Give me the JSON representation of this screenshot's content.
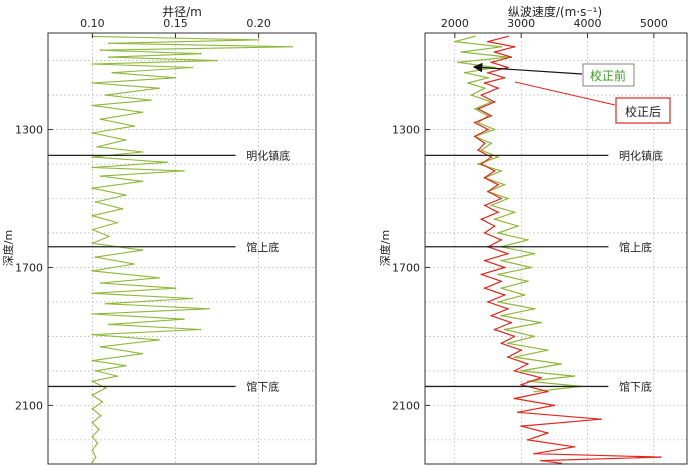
{
  "chart_data": [
    {
      "type": "line",
      "title": "井径/m",
      "xlabel": "井径/m",
      "ylabel": "深度/m",
      "xlim": [
        0.0733,
        0.2345
      ],
      "ylim": [
        2270,
        1020
      ],
      "x_ticks": [
        "0.10",
        "0.15",
        "0.20"
      ],
      "x_tick_values": [
        0.1,
        0.15,
        0.2
      ],
      "y_ticks": [
        "1300",
        "1700",
        "2100"
      ],
      "y_tick_values": [
        1300,
        1700,
        2100
      ],
      "grid": true,
      "colors": {
        "series": "#8db83a",
        "frame": "#333333",
        "grid": "#9a9a9a"
      },
      "series": [
        {
          "points": [
            [
              0.1,
              1030
            ],
            [
              0.2,
              1040
            ],
            [
              0.11,
              1050
            ],
            [
              0.22,
              1060
            ],
            [
              0.105,
              1070
            ],
            [
              0.165,
              1080
            ],
            [
              0.11,
              1090
            ],
            [
              0.175,
              1100
            ],
            [
              0.1,
              1110
            ],
            [
              0.16,
              1120
            ],
            [
              0.112,
              1135
            ],
            [
              0.15,
              1150
            ],
            [
              0.1,
              1165
            ],
            [
              0.14,
              1180
            ],
            [
              0.108,
              1200
            ],
            [
              0.135,
              1215
            ],
            [
              0.1,
              1230
            ],
            [
              0.13,
              1250
            ],
            [
              0.105,
              1270
            ],
            [
              0.125,
              1290
            ],
            [
              0.1,
              1310
            ],
            [
              0.12,
              1330
            ],
            [
              0.103,
              1350
            ],
            [
              0.13,
              1365
            ],
            [
              0.1,
              1380
            ],
            [
              0.145,
              1395
            ],
            [
              0.1,
              1410
            ],
            [
              0.155,
              1420
            ],
            [
              0.105,
              1435
            ],
            [
              0.13,
              1450
            ],
            [
              0.1,
              1470
            ],
            [
              0.12,
              1490
            ],
            [
              0.102,
              1510
            ],
            [
              0.118,
              1530
            ],
            [
              0.1,
              1550
            ],
            [
              0.115,
              1570
            ],
            [
              0.1,
              1590
            ],
            [
              0.11,
              1610
            ],
            [
              0.1,
              1630
            ],
            [
              0.13,
              1650
            ],
            [
              0.102,
              1670
            ],
            [
              0.125,
              1690
            ],
            [
              0.1,
              1710
            ],
            [
              0.14,
              1730
            ],
            [
              0.105,
              1745
            ],
            [
              0.15,
              1760
            ],
            [
              0.1,
              1775
            ],
            [
              0.16,
              1790
            ],
            [
              0.108,
              1805
            ],
            [
              0.17,
              1820
            ],
            [
              0.1,
              1835
            ],
            [
              0.155,
              1850
            ],
            [
              0.11,
              1865
            ],
            [
              0.165,
              1880
            ],
            [
              0.1,
              1895
            ],
            [
              0.14,
              1910
            ],
            [
              0.105,
              1930
            ],
            [
              0.13,
              1950
            ],
            [
              0.1,
              1970
            ],
            [
              0.12,
              1985
            ],
            [
              0.102,
              2000
            ],
            [
              0.115,
              2015
            ],
            [
              0.1,
              2030
            ],
            [
              0.108,
              2050
            ],
            [
              0.1,
              2070
            ],
            [
              0.106,
              2090
            ],
            [
              0.1,
              2110
            ],
            [
              0.105,
              2130
            ],
            [
              0.1,
              2150
            ],
            [
              0.104,
              2170
            ],
            [
              0.1,
              2190
            ],
            [
              0.103,
              2210
            ],
            [
              0.1,
              2230
            ],
            [
              0.102,
              2250
            ],
            [
              0.1,
              2265
            ]
          ]
        }
      ],
      "annotations": [
        {
          "text": "明化镇底",
          "depth": 1375
        },
        {
          "text": "馆上底",
          "depth": 1640
        },
        {
          "text": "馆下底",
          "depth": 2045
        }
      ]
    },
    {
      "type": "line",
      "title": "纵波速度/(m·s⁻¹)",
      "xlabel": "纵波速度/(m·s⁻¹)",
      "ylabel": "深度/m",
      "xlim": [
        1550,
        5500
      ],
      "ylim": [
        2270,
        1020
      ],
      "x_ticks": [
        "2000",
        "3000",
        "4000",
        "5000"
      ],
      "x_tick_values": [
        2000,
        3000,
        4000,
        5000
      ],
      "y_ticks": [
        "1300",
        "1700",
        "2100"
      ],
      "y_tick_values": [
        1300,
        1700,
        2100
      ],
      "grid": true,
      "colors": {
        "before": "#8db83a",
        "after": "#e0271e",
        "frame": "#333333",
        "grid": "#9a9a9a"
      },
      "series": [
        {
          "name": "校正前",
          "points": [
            [
              2300,
              1030
            ],
            [
              2000,
              1045
            ],
            [
              2700,
              1060
            ],
            [
              2100,
              1075
            ],
            [
              2800,
              1090
            ],
            [
              2050,
              1105
            ],
            [
              2600,
              1120
            ],
            [
              2150,
              1135
            ],
            [
              2500,
              1150
            ],
            [
              2200,
              1165
            ],
            [
              2450,
              1180
            ],
            [
              2250,
              1200
            ],
            [
              2550,
              1220
            ],
            [
              2300,
              1240
            ],
            [
              2500,
              1260
            ],
            [
              2350,
              1280
            ],
            [
              2600,
              1300
            ],
            [
              2300,
              1320
            ],
            [
              2550,
              1340
            ],
            [
              2400,
              1360
            ],
            [
              2650,
              1380
            ],
            [
              2350,
              1400
            ],
            [
              2700,
              1420
            ],
            [
              2450,
              1440
            ],
            [
              2750,
              1460
            ],
            [
              2500,
              1480
            ],
            [
              2800,
              1500
            ],
            [
              2550,
              1520
            ],
            [
              2900,
              1540
            ],
            [
              2600,
              1560
            ],
            [
              2950,
              1580
            ],
            [
              2650,
              1600
            ],
            [
              3100,
              1620
            ],
            [
              2700,
              1640
            ],
            [
              3200,
              1660
            ],
            [
              2700,
              1680
            ],
            [
              3150,
              1700
            ],
            [
              2650,
              1720
            ],
            [
              3100,
              1740
            ],
            [
              2700,
              1760
            ],
            [
              3050,
              1780
            ],
            [
              2650,
              1800
            ],
            [
              3200,
              1820
            ],
            [
              2700,
              1840
            ],
            [
              3300,
              1860
            ],
            [
              2750,
              1880
            ],
            [
              3200,
              1900
            ],
            [
              2800,
              1920
            ],
            [
              3400,
              1940
            ],
            [
              2900,
              1960
            ],
            [
              3600,
              1980
            ],
            [
              3000,
              2000
            ],
            [
              3800,
              2015
            ],
            [
              3100,
              2030
            ],
            [
              3900,
              2045
            ],
            [
              3200,
              2060
            ]
          ]
        },
        {
          "name": "校正后",
          "points": [
            [
              2800,
              1030
            ],
            [
              2500,
              1045
            ],
            [
              2900,
              1060
            ],
            [
              2600,
              1075
            ],
            [
              2850,
              1090
            ],
            [
              2550,
              1105
            ],
            [
              2800,
              1120
            ],
            [
              2500,
              1135
            ],
            [
              2750,
              1150
            ],
            [
              2450,
              1165
            ],
            [
              2650,
              1180
            ],
            [
              2400,
              1200
            ],
            [
              2600,
              1220
            ],
            [
              2350,
              1240
            ],
            [
              2550,
              1260
            ],
            [
              2300,
              1280
            ],
            [
              2500,
              1300
            ],
            [
              2300,
              1320
            ],
            [
              2450,
              1340
            ],
            [
              2350,
              1360
            ],
            [
              2550,
              1380
            ],
            [
              2400,
              1400
            ],
            [
              2600,
              1420
            ],
            [
              2450,
              1440
            ],
            [
              2650,
              1460
            ],
            [
              2500,
              1480
            ],
            [
              2700,
              1500
            ],
            [
              2450,
              1520
            ],
            [
              2650,
              1540
            ],
            [
              2400,
              1560
            ],
            [
              2600,
              1580
            ],
            [
              2450,
              1600
            ],
            [
              2700,
              1620
            ],
            [
              2500,
              1640
            ],
            [
              2800,
              1660
            ],
            [
              2450,
              1680
            ],
            [
              2750,
              1700
            ],
            [
              2400,
              1720
            ],
            [
              2700,
              1740
            ],
            [
              2450,
              1760
            ],
            [
              2750,
              1780
            ],
            [
              2500,
              1800
            ],
            [
              2800,
              1820
            ],
            [
              2550,
              1840
            ],
            [
              2850,
              1860
            ],
            [
              2600,
              1880
            ],
            [
              2900,
              1900
            ],
            [
              2700,
              1920
            ],
            [
              3000,
              1940
            ],
            [
              2800,
              1960
            ],
            [
              3100,
              1980
            ],
            [
              2900,
              2000
            ],
            [
              3300,
              2020
            ],
            [
              3000,
              2040
            ],
            [
              3400,
              2060
            ],
            [
              2900,
              2080
            ],
            [
              3500,
              2100
            ],
            [
              2950,
              2120
            ],
            [
              4200,
              2140
            ],
            [
              3000,
              2160
            ],
            [
              3400,
              2180
            ],
            [
              3100,
              2200
            ],
            [
              3800,
              2220
            ],
            [
              3200,
              2240
            ],
            [
              5100,
              2250
            ],
            [
              3300,
              2260
            ],
            [
              3600,
              2268
            ]
          ]
        }
      ],
      "annotations": [
        {
          "text": "明化镇底",
          "depth": 1375
        },
        {
          "text": "馆上底",
          "depth": 1640
        },
        {
          "text": "馆下底",
          "depth": 2045
        }
      ],
      "legend": {
        "placement": "top-right",
        "items": [
          {
            "text": "校正前",
            "color": "#3a9a22"
          },
          {
            "text": "校正后",
            "color": "#e0271e"
          }
        ]
      }
    }
  ]
}
